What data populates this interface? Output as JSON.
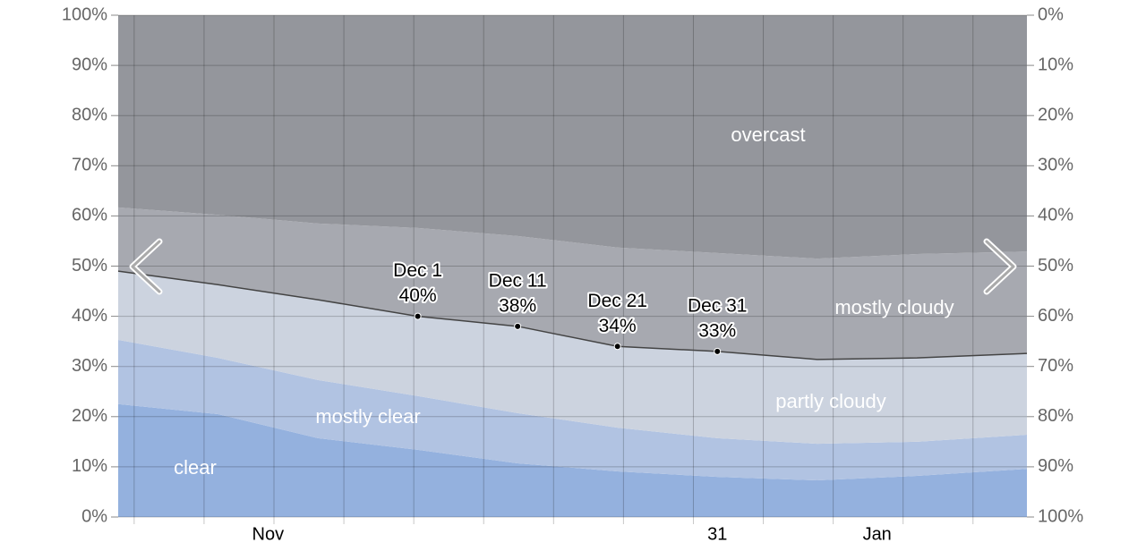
{
  "chart_data": {
    "type": "stacked-area",
    "x": [
      0,
      10,
      20,
      30,
      40,
      50,
      60,
      70,
      80,
      91
    ],
    "xlim": [
      0,
      91
    ],
    "xticks": [
      {
        "value": 15,
        "label": "Nov"
      },
      {
        "value": 60,
        "label": "31"
      },
      {
        "value": 76,
        "label": "Jan"
      }
    ],
    "xgrid": [
      1.6,
      8.6,
      15.6,
      22.6,
      29.6,
      36.6,
      43.6,
      50.6,
      57.6,
      64.6,
      71.6,
      78.6,
      85.6
    ],
    "series": [
      {
        "name": "clear",
        "color": "#94b1de",
        "values": [
          22.5,
          20.5,
          15.7,
          13.4,
          10.7,
          9.1,
          8.0,
          7.3,
          8.2,
          9.6
        ]
      },
      {
        "name": "mostly clear",
        "color": "#b1c3e2",
        "values": [
          12.8,
          11.2,
          11.6,
          10.7,
          10.0,
          8.7,
          7.7,
          7.3,
          6.8,
          6.8
        ]
      },
      {
        "name": "partly cloudy",
        "color": "#ccd3df",
        "values": [
          13.7,
          14.6,
          16.0,
          15.9,
          17.3,
          16.2,
          17.3,
          16.8,
          16.7,
          16.2
        ]
      },
      {
        "name": "mostly cloudy",
        "color": "#a7a9b0",
        "values": [
          12.7,
          13.9,
          15.2,
          17.6,
          18.0,
          19.7,
          19.6,
          20.1,
          20.7,
          20.3
        ]
      },
      {
        "name": "overcast",
        "color": "#94969c",
        "values": [
          38.3,
          39.8,
          41.5,
          42.4,
          44.0,
          46.3,
          47.4,
          48.5,
          47.6,
          47.1
        ]
      }
    ],
    "ylim": [
      0,
      100
    ],
    "yticks": [
      {
        "value": 0,
        "label": "0%"
      },
      {
        "value": 10,
        "label": "10%"
      },
      {
        "value": 20,
        "label": "20%"
      },
      {
        "value": 30,
        "label": "30%"
      },
      {
        "value": 40,
        "label": "40%"
      },
      {
        "value": 50,
        "label": "50%"
      },
      {
        "value": 60,
        "label": "60%"
      },
      {
        "value": 70,
        "label": "70%"
      },
      {
        "value": 80,
        "label": "80%"
      },
      {
        "value": 90,
        "label": "90%"
      },
      {
        "value": 100,
        "label": "100%"
      }
    ],
    "y2lim": [
      100,
      0
    ],
    "y2ticks": [
      {
        "value": 0,
        "label": "0%"
      },
      {
        "value": 10,
        "label": "10%"
      },
      {
        "value": 20,
        "label": "20%"
      },
      {
        "value": 30,
        "label": "30%"
      },
      {
        "value": 40,
        "label": "40%"
      },
      {
        "value": 50,
        "label": "50%"
      },
      {
        "value": 60,
        "label": "60%"
      },
      {
        "value": 70,
        "label": "70%"
      },
      {
        "value": 80,
        "label": "80%"
      },
      {
        "value": 90,
        "label": "90%"
      },
      {
        "value": 100,
        "label": "100%"
      }
    ],
    "grid": true,
    "annotations": [
      {
        "text": "Dec 1",
        "x": 30,
        "value": 40,
        "value_label": "40%"
      },
      {
        "text": "Dec 11",
        "x": 40,
        "value": 38,
        "value_label": "38%"
      },
      {
        "text": "Dec 21",
        "x": 50,
        "value": 34,
        "value_label": "34%"
      },
      {
        "text": "Dec 31",
        "x": 60,
        "value": 33,
        "value_label": "33%"
      }
    ]
  }
}
